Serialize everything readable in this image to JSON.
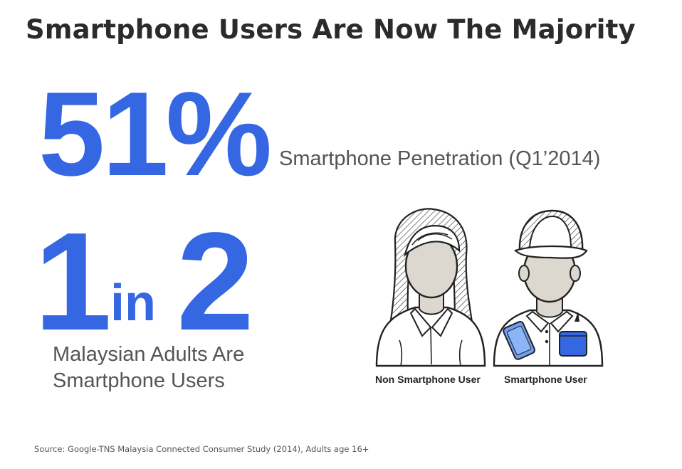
{
  "title": "Smartphone Users Are Now The Majority",
  "stat_penetration": {
    "value": "51%",
    "label": "Smartphone Penetration (Q1’2014)"
  },
  "stat_ratio": {
    "first": "1",
    "middle": "in",
    "second": "2",
    "label_line1": "Malaysian Adults Are",
    "label_line2": "Smartphone Users"
  },
  "figures": {
    "left_label": "Non Smartphone User",
    "right_label": "Smartphone User",
    "left_icon": "woman-illustration-icon",
    "right_icon": "man-with-cap-and-phone-icon"
  },
  "colors": {
    "accent": "#3567e2",
    "title": "#2b2b2b",
    "text": "#555555",
    "face": "#dcd8d0",
    "phone": "#6f9ff2"
  },
  "source": "Source: Google-TNS Malaysia Connected Consumer Study (2014), Adults age 16+"
}
